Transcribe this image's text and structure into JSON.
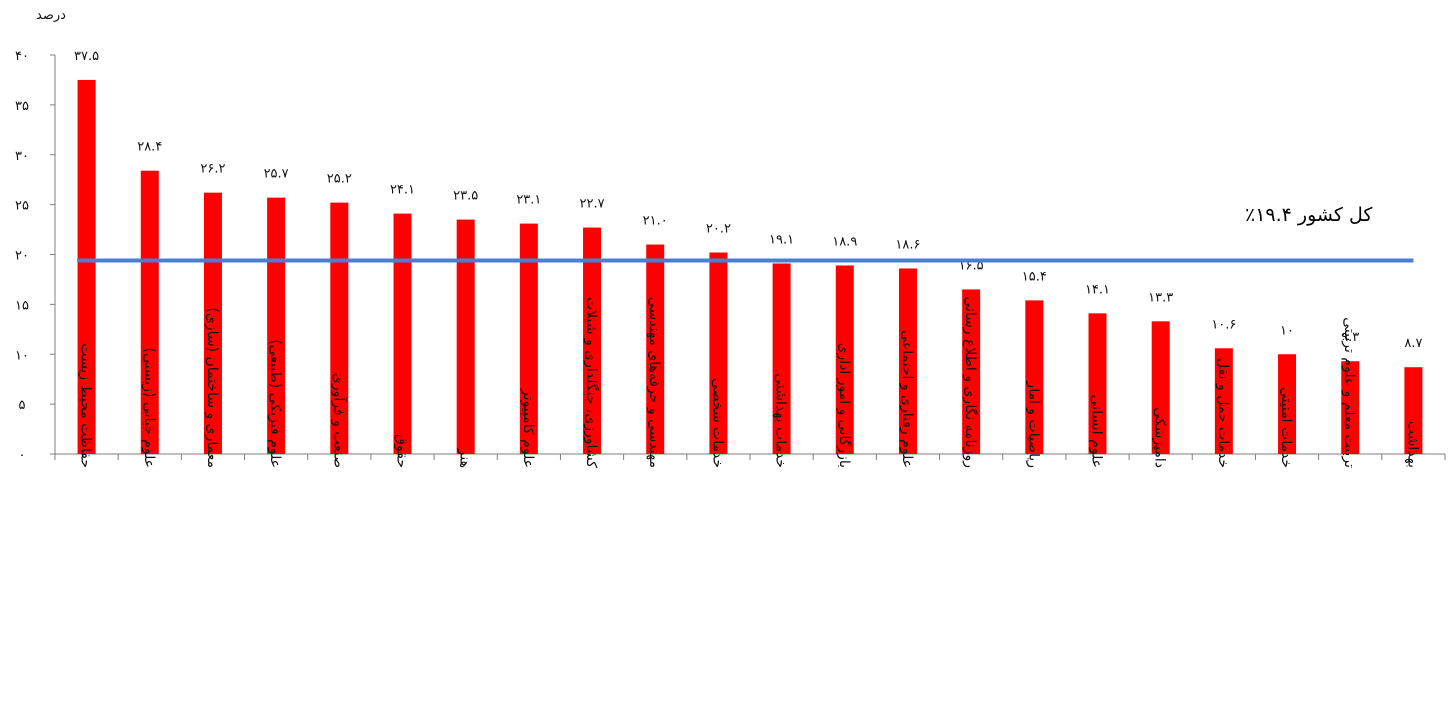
{
  "chart_data": {
    "type": "bar",
    "ylabel": "درصد",
    "ylim": [
      0,
      40
    ],
    "yticks": [
      0,
      5,
      10,
      15,
      20,
      25,
      30,
      35,
      40
    ],
    "ytick_labels": [
      "۰",
      "۵",
      "۱۰",
      "۱۵",
      "۲۰",
      "۲۵",
      "۳۰",
      "۳۵",
      "۴۰"
    ],
    "categories": [
      "حفاظت محیط زیست",
      "علوم حیاتی (زیستی)",
      "معماری و ساختمان (سازی)",
      "علوم فیزیکی (طبیعی)",
      "صنعت و فرآوری",
      "حقوق",
      "هنر",
      "علوم کامپیوتر",
      "کشاورزی، جنگلداری و شیلات",
      "مهندسی و حرفه‌های مهندسی",
      "خدمات شخصی",
      "خدمات بهداشتی",
      "بازرگانی و امور اداری",
      "علوم رفتاری و اجتماعی",
      "روزنامه نگاری و اطلاع رسانی",
      "ریاضیات و آمار",
      "علوم انسانی",
      "دامپزشکی",
      "خدمات حمل و نقل",
      "خدمات امنیتی",
      "تربیت معلم و علوم تربیتی",
      "بهداشت"
    ],
    "values": [
      37.5,
      28.4,
      26.2,
      25.7,
      25.2,
      24.1,
      23.5,
      23.1,
      22.7,
      21.0,
      20.2,
      19.1,
      18.9,
      18.6,
      16.5,
      15.4,
      14.1,
      13.3,
      10.6,
      10,
      9.3,
      8.7
    ],
    "value_labels": [
      "۳۷.۵",
      "۲۸.۴",
      "۲۶.۲",
      "۲۵.۷",
      "۲۵.۲",
      "۲۴.۱",
      "۲۳.۵",
      "۲۳.۱",
      "۲۲.۷",
      "۲۱.۰",
      "۲۰.۲",
      "۱۹.۱",
      "۱۸.۹",
      "۱۸.۶",
      "۱۶.۵",
      "۱۵.۴",
      "۱۴.۱",
      "۱۳.۳",
      "۱۰.۶",
      "۱۰",
      "۹.۳",
      "۸.۷"
    ],
    "reference_line": {
      "value": 19.4,
      "label": "کل کشور ۱۹.۴٪"
    },
    "grid": false,
    "legend": "none",
    "colors": {
      "bars": "#ff0000",
      "reference_line": "#4a7fd0",
      "axis": "#7f7f7f"
    }
  }
}
